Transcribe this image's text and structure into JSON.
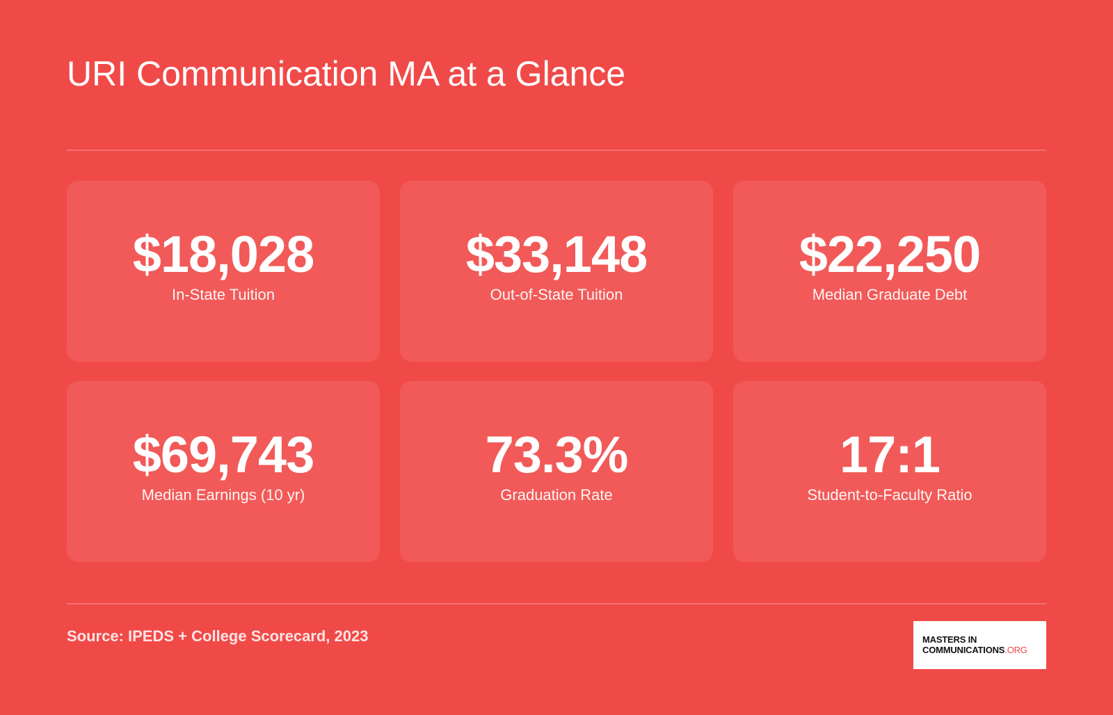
{
  "title": "URI Communication MA at a Glance",
  "stats": [
    {
      "value": "$18,028",
      "label": "In-State Tuition"
    },
    {
      "value": "$33,148",
      "label": "Out-of-State Tuition"
    },
    {
      "value": "$22,250",
      "label": "Median Graduate Debt"
    },
    {
      "value": "$69,743",
      "label": "Median Earnings (10 yr)"
    },
    {
      "value": "73.3%",
      "label": "Graduation Rate"
    },
    {
      "value": "17:1",
      "label": "Student-to-Faculty Ratio"
    }
  ],
  "source": "Source: IPEDS + College Scorecard, 2023",
  "logo": {
    "line1": "MASTERS IN",
    "line2": "COMMUNICATIONS",
    "suffix": ".ORG"
  },
  "colors": {
    "background": "#F04A48",
    "text": "#FFFFFF",
    "logo_accent": "#F04A48"
  }
}
